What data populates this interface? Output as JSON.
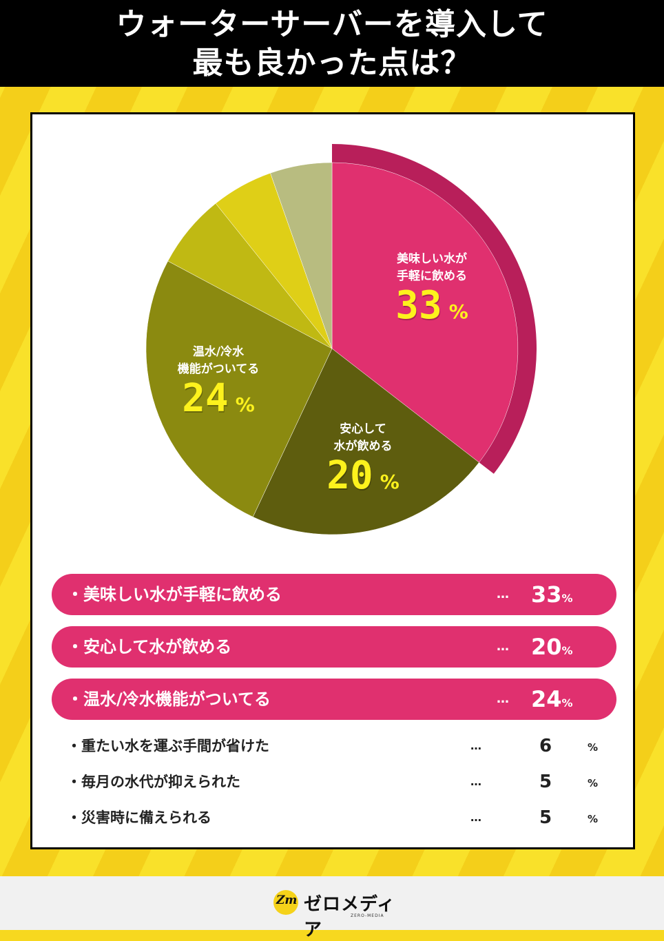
{
  "header": {
    "line1": "ウォーターサーバーを導入して",
    "line2": "最も良かった点は？"
  },
  "chart_data": {
    "type": "pie",
    "title": "ウォーターサーバーを導入して最も良かった点は？",
    "unit": "%",
    "slices": [
      {
        "label": "美味しい水が手軽に飲める",
        "value": 33,
        "color": "#e0306f"
      },
      {
        "label": "安心して水が飲める",
        "value": 20,
        "color": "#5e5d0e"
      },
      {
        "label": "温水/冷水機能がついてる",
        "value": 24,
        "color": "#8b8a10"
      },
      {
        "label": "重たい水を運ぶ手間が省けた",
        "value": 6,
        "color": "#c0b913"
      },
      {
        "label": "毎月の水代が抑えられた",
        "value": 5,
        "color": "#dfcf17"
      },
      {
        "label": "災害時に備えられる",
        "value": 5,
        "color": "#b8bc80"
      }
    ],
    "callouts": [
      {
        "line1": "美味しい水が",
        "line2": "手軽に飲める",
        "value": "33",
        "pct": "%"
      },
      {
        "line1": "安心して",
        "line2": "水が飲める",
        "value": "20",
        "pct": "%"
      },
      {
        "line1": "温水/冷水",
        "line2": "機能がついてる",
        "value": "24",
        "pct": "%"
      }
    ],
    "highlight_color": "#b81f5a"
  },
  "list": {
    "dots": "…",
    "top": [
      {
        "label": "・美味しい水が手軽に飲める",
        "value": "33",
        "pct": "%"
      },
      {
        "label": "・安心して水が飲める",
        "value": "20",
        "pct": "%"
      },
      {
        "label": "・温水/冷水機能がついてる",
        "value": "24",
        "pct": "%"
      }
    ],
    "others": [
      {
        "label": "・重たい水を運ぶ手間が省けた",
        "value": "6",
        "pct": "%"
      },
      {
        "label": "・毎月の水代が抑えられた",
        "value": "5",
        "pct": "%"
      },
      {
        "label": "・災害時に備えられる",
        "value": "5",
        "pct": "%"
      }
    ]
  },
  "footer": {
    "logo_mark": "Zm",
    "logo_name": "ゼロメディア",
    "logo_sub": "ZERO-MEDIA"
  }
}
